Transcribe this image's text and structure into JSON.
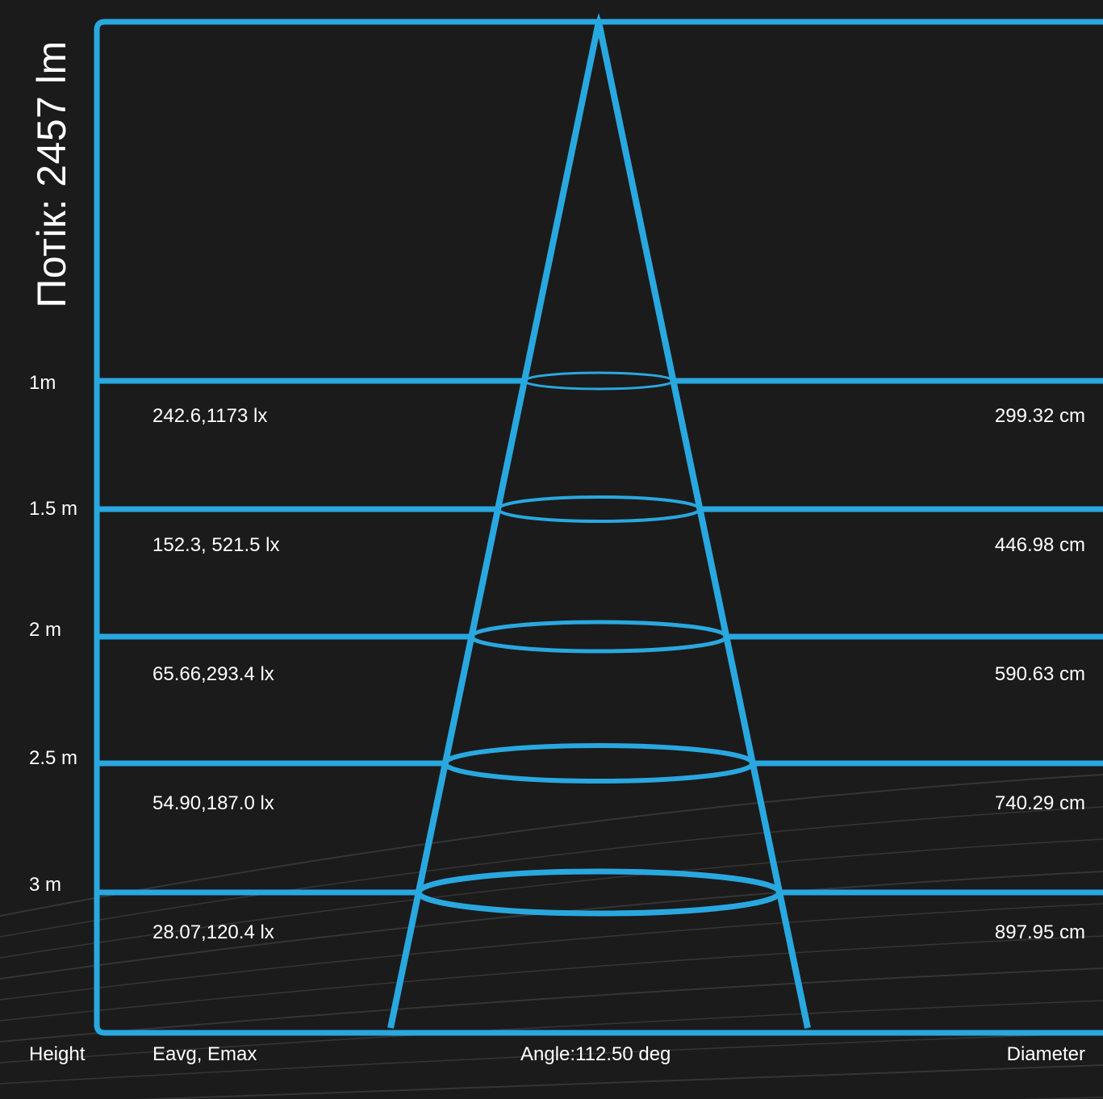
{
  "title": "Потік: 2457 lm",
  "colors": {
    "background": "#1b1b1b",
    "accent": "#29a8e0",
    "text": "#ffffff",
    "swoosh": "#4a4a4a"
  },
  "levels": [
    {
      "height": "1m",
      "illuminance": "242.6,1173 lx",
      "diameter": "299.32 cm"
    },
    {
      "height": "1.5 m",
      "illuminance": "152.3, 521.5 lx",
      "diameter": "446.98 cm"
    },
    {
      "height": "2 m",
      "illuminance": "65.66,293.4 lx",
      "diameter": "590.63 cm"
    },
    {
      "height": "2.5 m",
      "illuminance": "54.90,187.0 lx",
      "diameter": "740.29 cm"
    },
    {
      "height": "3 m",
      "illuminance": "28.07,120.4 lx",
      "diameter": "897.95 cm"
    }
  ],
  "footer": {
    "height_label": "Height",
    "eavg_label": "Eavg, Emax",
    "angle_label": "Angle:112.50 deg",
    "diameter_label": "Diameter"
  }
}
